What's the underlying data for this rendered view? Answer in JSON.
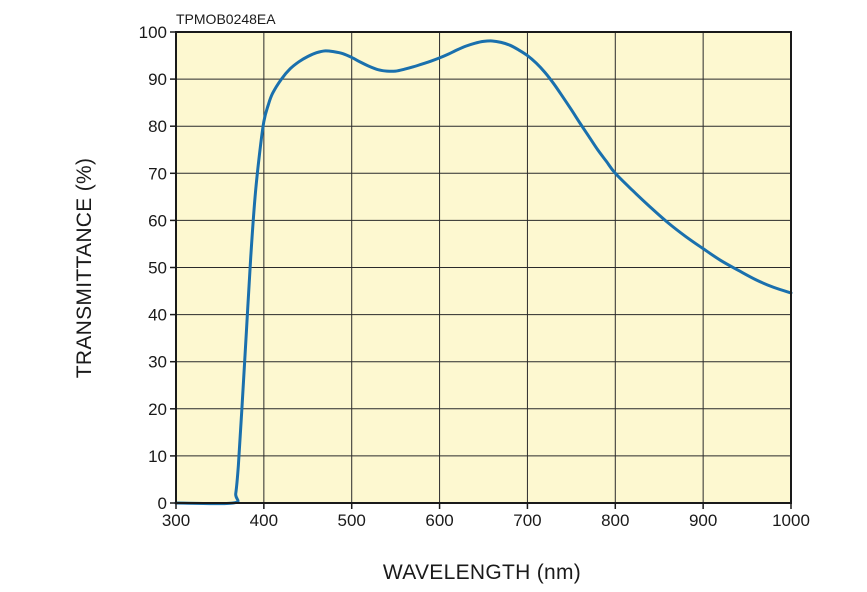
{
  "chart_data": {
    "type": "line",
    "figure_code": "TPMOB0248EA",
    "xlabel": "WAVELENGTH (nm)",
    "ylabel": "TRANSMITTANCE (%)",
    "xlim": [
      300,
      1000
    ],
    "ylim": [
      0,
      100
    ],
    "xticks": [
      300,
      400,
      500,
      600,
      700,
      800,
      900,
      1000
    ],
    "yticks": [
      0,
      10,
      20,
      30,
      40,
      50,
      60,
      70,
      80,
      90,
      100
    ],
    "grid": true,
    "colors": {
      "plot_background": "#fdf8d0",
      "grid": "#2a2a2a",
      "line": "#1a70ad",
      "frame": "#1a1a1a"
    },
    "series": [
      {
        "name": "Transmittance",
        "x": [
          300,
          365,
          368,
          371,
          375,
          380,
          385,
          390,
          395,
          400,
          405,
          410,
          420,
          430,
          440,
          450,
          460,
          470,
          480,
          490,
          500,
          510,
          520,
          530,
          540,
          550,
          560,
          570,
          580,
          590,
          600,
          610,
          620,
          630,
          640,
          650,
          660,
          670,
          680,
          690,
          700,
          710,
          720,
          730,
          740,
          750,
          760,
          770,
          780,
          790,
          800,
          820,
          840,
          860,
          880,
          900,
          920,
          940,
          960,
          980,
          1000
        ],
        "y": [
          0,
          0,
          2,
          8,
          20,
          36,
          52,
          65,
          74,
          81,
          84.5,
          87,
          90,
          92.2,
          93.7,
          94.8,
          95.6,
          96,
          95.8,
          95.4,
          94.6,
          93.6,
          92.7,
          92,
          91.7,
          91.7,
          92.1,
          92.6,
          93.2,
          93.8,
          94.5,
          95.3,
          96.2,
          97,
          97.6,
          98,
          98.1,
          97.8,
          97.2,
          96.2,
          95,
          93.4,
          91.4,
          89,
          86.3,
          83.5,
          80.6,
          77.8,
          75,
          72.5,
          70,
          66.3,
          62.8,
          59.5,
          56.6,
          54,
          51.5,
          49.4,
          47.4,
          45.8,
          44.6
        ]
      }
    ]
  }
}
